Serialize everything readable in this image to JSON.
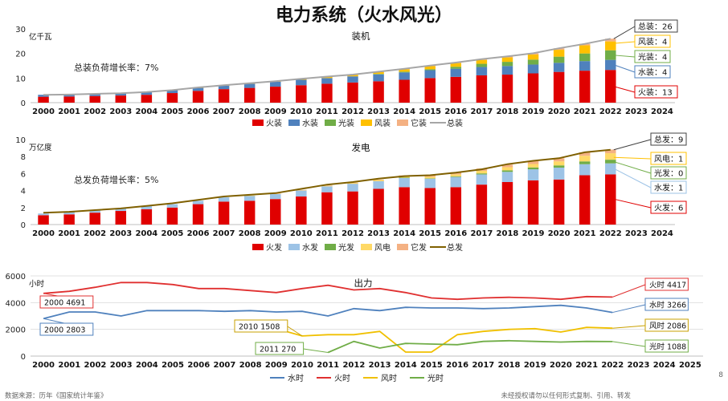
{
  "page": {
    "title": "电力系统（火水风光）",
    "source": "数据来源：历年《国家统计年鉴》",
    "notice": "未经授权请勿以任何形式复制、引用、转发",
    "page_number": "8"
  },
  "chart_data": [
    {
      "type": "bar",
      "stacked": true,
      "subtitle": "装机",
      "ylabel": "亿千瓦",
      "ylim": [
        0,
        30
      ],
      "yticks": [
        0,
        10,
        20,
        30
      ],
      "note": "总装负荷增长率：7%",
      "categories": [
        "2000",
        "2001",
        "2002",
        "2003",
        "2004",
        "2005",
        "2006",
        "2007",
        "2008",
        "2009",
        "2010",
        "2011",
        "2012",
        "2013",
        "2014",
        "2015",
        "2016",
        "2017",
        "2018",
        "2019",
        "2020",
        "2021",
        "2022",
        "2023",
        "2024"
      ],
      "series": [
        {
          "name": "火装",
          "color": "#e00000",
          "values": [
            2.4,
            2.5,
            2.7,
            2.9,
            3.2,
            3.9,
            4.8,
            5.5,
            6.0,
            6.5,
            7.1,
            7.7,
            8.2,
            8.7,
            9.3,
            10.0,
            10.5,
            11.1,
            11.4,
            11.9,
            12.5,
            13.0,
            13.3,
            null,
            null
          ]
        },
        {
          "name": "水装",
          "color": "#4f81bd",
          "values": [
            0.8,
            0.8,
            0.9,
            0.9,
            1.1,
            1.2,
            1.3,
            1.5,
            1.7,
            2.0,
            2.2,
            2.3,
            2.5,
            2.8,
            3.0,
            3.2,
            3.3,
            3.4,
            3.5,
            3.6,
            3.7,
            3.9,
            4.1,
            null,
            null
          ]
        },
        {
          "name": "光装",
          "color": "#70ad47",
          "values": [
            0,
            0,
            0,
            0,
            0,
            0,
            0,
            0,
            0,
            0,
            0,
            0,
            0,
            0.2,
            0.3,
            0.4,
            0.8,
            1.3,
            1.7,
            2.0,
            2.5,
            3.1,
            3.9,
            null,
            null
          ]
        },
        {
          "name": "风装",
          "color": "#ffc000",
          "values": [
            0,
            0,
            0,
            0,
            0,
            0,
            0.03,
            0.06,
            0.1,
            0.2,
            0.3,
            0.5,
            0.6,
            0.8,
            1.0,
            1.3,
            1.5,
            1.6,
            1.8,
            2.1,
            2.8,
            3.3,
            3.6,
            null,
            null
          ]
        },
        {
          "name": "它装",
          "color": "#f4b183",
          "values": [
            0,
            0,
            0,
            0,
            0,
            0,
            0.06,
            0.06,
            0.1,
            0.1,
            0.1,
            0.1,
            0.1,
            0.1,
            0.2,
            0.2,
            0.2,
            0.3,
            0.4,
            0.5,
            0.6,
            0.6,
            1.1,
            null,
            null
          ]
        }
      ],
      "total": {
        "name": "总装",
        "color": "#a6a6a6",
        "values": [
          3.2,
          3.3,
          3.6,
          3.8,
          4.3,
          5.1,
          6.2,
          7.1,
          7.9,
          8.7,
          9.7,
          10.6,
          11.4,
          12.6,
          13.8,
          15.1,
          16.3,
          17.7,
          18.8,
          20.1,
          22.1,
          23.9,
          26.0,
          null,
          null
        ]
      },
      "callouts": [
        {
          "text": "总装：26",
          "ref": 26.0,
          "color": "#404040"
        },
        {
          "text": "风装：4",
          "ref": 24.1,
          "color": "#ffc000"
        },
        {
          "text": "光装：4",
          "ref": 19.3,
          "color": "#70ad47"
        },
        {
          "text": "水装：4",
          "ref": 15.4,
          "color": "#4f81bd"
        },
        {
          "text": "火装：13",
          "ref": 6.6,
          "color": "#e00000"
        }
      ]
    },
    {
      "type": "bar",
      "stacked": true,
      "subtitle": "发电",
      "ylabel": "万亿度",
      "ylim": [
        0,
        10
      ],
      "yticks": [
        0,
        2,
        4,
        6,
        8,
        10
      ],
      "note": "总发负荷增长率：5%",
      "categories": [
        "2000",
        "2001",
        "2002",
        "2003",
        "2004",
        "2005",
        "2006",
        "2007",
        "2008",
        "2009",
        "2010",
        "2011",
        "2012",
        "2013",
        "2014",
        "2015",
        "2016",
        "2017",
        "2018",
        "2019",
        "2020",
        "2021",
        "2022",
        "2023",
        "2024"
      ],
      "series": [
        {
          "name": "火发",
          "color": "#e00000",
          "values": [
            1.1,
            1.2,
            1.4,
            1.6,
            1.8,
            2.0,
            2.4,
            2.7,
            2.8,
            3.0,
            3.3,
            3.8,
            3.9,
            4.2,
            4.4,
            4.3,
            4.4,
            4.7,
            5.0,
            5.2,
            5.3,
            5.8,
            5.9,
            null,
            null
          ]
        },
        {
          "name": "水发",
          "color": "#9dc3e6",
          "values": [
            0.2,
            0.3,
            0.3,
            0.3,
            0.4,
            0.4,
            0.4,
            0.5,
            0.6,
            0.6,
            0.7,
            0.7,
            0.9,
            0.9,
            1.1,
            1.1,
            1.2,
            1.2,
            1.2,
            1.3,
            1.4,
            1.3,
            1.3,
            null,
            null
          ]
        },
        {
          "name": "光发",
          "color": "#70ad47",
          "values": [
            0,
            0,
            0,
            0,
            0,
            0,
            0,
            0,
            0,
            0,
            0,
            0,
            0,
            0,
            0.02,
            0.04,
            0.07,
            0.12,
            0.18,
            0.22,
            0.26,
            0.33,
            0.43,
            null,
            null
          ]
        },
        {
          "name": "风电",
          "color": "#ffd966",
          "values": [
            0,
            0,
            0,
            0,
            0,
            0,
            0,
            0,
            0.01,
            0.03,
            0.05,
            0.07,
            0.1,
            0.14,
            0.16,
            0.19,
            0.24,
            0.3,
            0.37,
            0.4,
            0.47,
            0.66,
            0.76,
            null,
            null
          ]
        },
        {
          "name": "它发",
          "color": "#f4b183",
          "values": [
            0,
            0,
            0,
            0,
            0,
            0,
            0,
            0,
            0,
            0.02,
            0.02,
            0.03,
            0.04,
            0.05,
            0.1,
            0.2,
            0.25,
            0.27,
            0.3,
            0.35,
            0.38,
            0.4,
            0.43,
            null,
            null
          ]
        }
      ],
      "total": {
        "name": "总发",
        "color": "#7f6000",
        "values": [
          1.4,
          1.5,
          1.7,
          1.9,
          2.2,
          2.5,
          2.9,
          3.3,
          3.5,
          3.7,
          4.2,
          4.7,
          5.0,
          5.4,
          5.7,
          5.8,
          6.1,
          6.5,
          7.1,
          7.5,
          7.8,
          8.5,
          8.8,
          null,
          null
        ]
      },
      "callouts": [
        {
          "text": "总发：9",
          "ref": 8.8,
          "color": "#404040"
        },
        {
          "text": "风电：1",
          "ref": 7.9,
          "color": "#ffc000"
        },
        {
          "text": "光发：0",
          "ref": 7.4,
          "color": "#70ad47"
        },
        {
          "text": "水发：1",
          "ref": 6.6,
          "color": "#9dc3e6"
        },
        {
          "text": "火发：6",
          "ref": 3.0,
          "color": "#e00000"
        }
      ]
    },
    {
      "type": "line",
      "subtitle": "出力",
      "ylabel": "小时",
      "ylim": [
        0,
        6000
      ],
      "yticks": [
        0,
        2000,
        4000,
        6000
      ],
      "x": [
        "2000",
        "2001",
        "2002",
        "2003",
        "2004",
        "2005",
        "2006",
        "2007",
        "2008",
        "2009",
        "2010",
        "2011",
        "2012",
        "2013",
        "2014",
        "2015",
        "2016",
        "2017",
        "2018",
        "2019",
        "2020",
        "2021",
        "2022",
        "2023",
        "2024",
        "2025"
      ],
      "series": [
        {
          "name": "水时",
          "color": "#4f81bd",
          "values": [
            2803,
            3300,
            3300,
            3000,
            3400,
            3400,
            3400,
            3350,
            3400,
            3300,
            3350,
            3000,
            3550,
            3400,
            3650,
            3600,
            3600,
            3550,
            3600,
            3700,
            3800,
            3600,
            3266,
            null,
            null,
            null
          ]
        },
        {
          "name": "火时",
          "color": "#e03030",
          "values": [
            4691,
            4850,
            5150,
            5500,
            5500,
            5350,
            5050,
            5050,
            4900,
            4750,
            5050,
            5300,
            4950,
            5050,
            4750,
            4350,
            4250,
            4350,
            4400,
            4350,
            4250,
            4450,
            4417,
            null,
            null,
            null
          ]
        },
        {
          "name": "风时",
          "color": "#f0c000",
          "values": [
            null,
            null,
            null,
            null,
            null,
            null,
            null,
            null,
            null,
            2050,
            1508,
            1600,
            1600,
            1850,
            300,
            300,
            1600,
            1850,
            2000,
            2050,
            1800,
            2150,
            2086,
            null,
            null,
            null
          ]
        },
        {
          "name": "光时",
          "color": "#70ad47",
          "values": [
            null,
            null,
            null,
            null,
            null,
            null,
            null,
            null,
            null,
            null,
            null,
            270,
            1100,
            600,
            950,
            900,
            850,
            1100,
            1150,
            1100,
            1050,
            1100,
            1088,
            null,
            null,
            null
          ]
        }
      ],
      "annotations": [
        {
          "text": "2000 4691",
          "year": "2000",
          "value": 4691,
          "color": "#e03030"
        },
        {
          "text": "2000 2803",
          "year": "2000",
          "value": 2803,
          "color": "#4f81bd"
        },
        {
          "text": "2010 1508",
          "year": "2010",
          "value": 1508,
          "color": "#c9a000"
        },
        {
          "text": "2011 270",
          "year": "2011",
          "value": 270,
          "color": "#70ad47"
        },
        {
          "text": "火时 4417",
          "year": "2022",
          "value": 4417,
          "color": "#e03030"
        },
        {
          "text": "水时 3266",
          "year": "2022",
          "value": 3266,
          "color": "#4f81bd"
        },
        {
          "text": "风时 2086",
          "year": "2022",
          "value": 2086,
          "color": "#c9a000"
        },
        {
          "text": "光时 1088",
          "year": "2022",
          "value": 1088,
          "color": "#70ad47"
        }
      ]
    }
  ]
}
